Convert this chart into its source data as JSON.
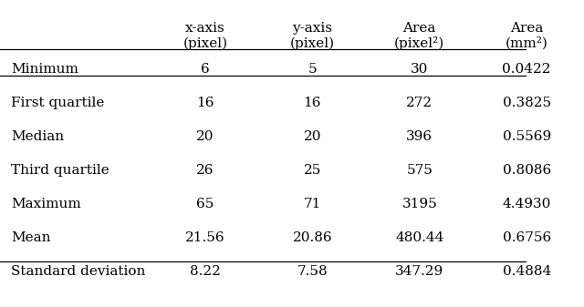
{
  "col_headers": [
    "x-axis\n(pixel)",
    "y-axis\n(pixel)",
    "Area\n(pixel²)",
    "Area\n(mm²)"
  ],
  "row_labels": [
    "Minimum",
    "First quartile",
    "Median",
    "Third quartile",
    "Maximum",
    "Mean",
    "Standard deviation"
  ],
  "table_data": [
    [
      "6",
      "5",
      "30",
      "0.0422"
    ],
    [
      "16",
      "16",
      "272",
      "0.3825"
    ],
    [
      "20",
      "20",
      "396",
      "0.5569"
    ],
    [
      "26",
      "25",
      "575",
      "0.8086"
    ],
    [
      "65",
      "71",
      "3195",
      "4.4930"
    ],
    [
      "21.56",
      "20.86",
      "480.44",
      "0.6756"
    ],
    [
      "8.22",
      "7.58",
      "347.29",
      "0.4884"
    ]
  ],
  "font_size": 11,
  "font_family": "serif",
  "bg_color": "#ffffff",
  "text_color": "#000000"
}
